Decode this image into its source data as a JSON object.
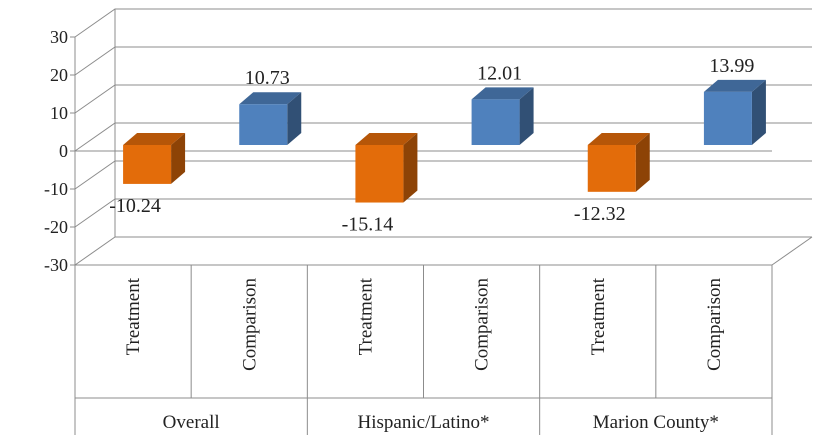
{
  "chart_data": {
    "type": "bar",
    "groups": [
      "Overall",
      "Hispanic/Latino*",
      "Marion County*"
    ],
    "categories": [
      "Treatment",
      "Comparison",
      "Treatment",
      "Comparison",
      "Treatment",
      "Comparison"
    ],
    "values": [
      -10.24,
      10.73,
      -15.14,
      12.01,
      -12.32,
      13.99
    ],
    "data_labels": [
      "-10.24",
      "10.73",
      "-15.14",
      "12.01",
      "-12.32",
      "13.99"
    ],
    "ylim": [
      -30,
      30
    ],
    "yticks": [
      "30",
      "20",
      "10",
      "0",
      "-10",
      "-20",
      "-30"
    ],
    "title": "",
    "xlabel": "",
    "ylabel": "",
    "grid": true,
    "three_d": true,
    "colors": {
      "Treatment": "#e36c0a",
      "Comparison": "#4f81bd"
    }
  }
}
